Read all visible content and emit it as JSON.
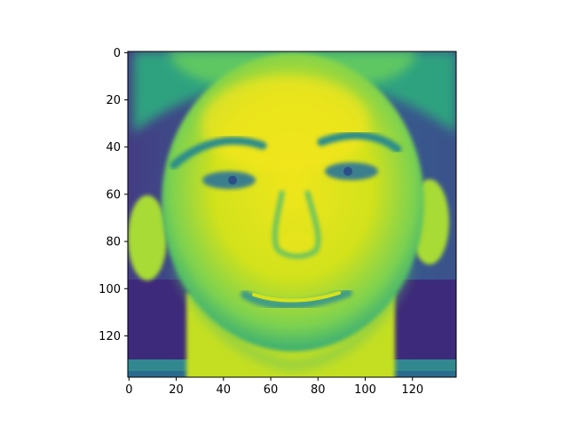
{
  "chart_data": {
    "type": "heatmap",
    "colormap": "viridis",
    "colormap_stops": [
      "#440154",
      "#414487",
      "#2a788e",
      "#22a884",
      "#7ad151",
      "#fde725"
    ],
    "image_description": "grayscale-style face photograph rendered with viridis colormap",
    "shape": {
      "rows": 138,
      "cols": 139
    },
    "xlim": [
      -0.5,
      138.5
    ],
    "ylim": [
      137.5,
      -0.5
    ],
    "x_ticks": [
      0,
      20,
      40,
      60,
      80,
      100,
      120
    ],
    "y_ticks": [
      0,
      20,
      40,
      60,
      80,
      100,
      120
    ],
    "x_tick_labels": [
      "0",
      "20",
      "40",
      "60",
      "80",
      "100",
      "120"
    ],
    "y_tick_labels": [
      "0",
      "20",
      "40",
      "60",
      "80",
      "100",
      "120"
    ],
    "title": "",
    "xlabel": "",
    "ylabel": "",
    "grid": false,
    "legend": "none"
  }
}
